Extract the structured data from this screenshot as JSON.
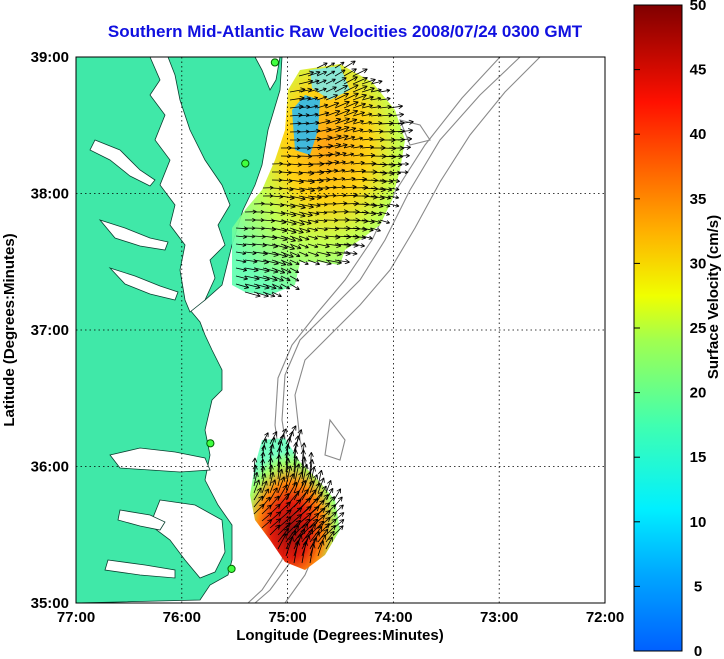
{
  "title": "Southern Mid-Atlantic Raw Velocities 2008/07/24 0300 GMT",
  "map": {
    "xlabel": "Longitude (Degrees:Minutes)",
    "ylabel": "Latitude (Degrees:Minutes)",
    "x_ticks": [
      "77:00",
      "76:00",
      "75:00",
      "74:00",
      "73:00",
      "72:00"
    ],
    "y_ticks": [
      "39:00",
      "38:00",
      "37:00",
      "36:00",
      "35:00"
    ],
    "lon_range": [
      -77,
      -72
    ],
    "lat_range": [
      35,
      39
    ],
    "land_color": "#40e8a8",
    "grid": "dotted",
    "stations": [
      {
        "lon": -75.12,
        "lat": 38.96
      },
      {
        "lon": -75.4,
        "lat": 38.22
      },
      {
        "lon": -75.73,
        "lat": 36.17
      },
      {
        "lon": -75.53,
        "lat": 35.25
      }
    ]
  },
  "colorbar": {
    "label": "Surface Velocity (cm/s)",
    "ticks": [
      "50",
      "45",
      "40",
      "35",
      "30",
      "25",
      "20",
      "15",
      "10",
      "5",
      "0"
    ],
    "range": [
      0,
      50
    ]
  }
}
